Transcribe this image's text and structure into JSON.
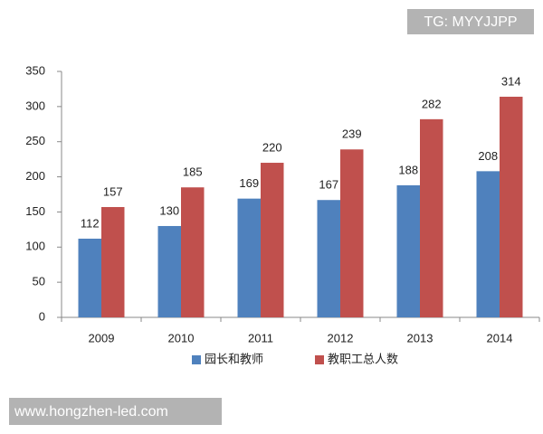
{
  "chart_data": {
    "type": "bar",
    "categories": [
      "2009",
      "2010",
      "2011",
      "2012",
      "2013",
      "2014"
    ],
    "series": [
      {
        "name": "园长和教师",
        "color": "#4f81bd",
        "values": [
          112,
          130,
          169,
          167,
          188,
          208
        ]
      },
      {
        "name": "教职工总人数",
        "color": "#c0504d",
        "values": [
          157,
          185,
          220,
          239,
          282,
          314
        ]
      }
    ],
    "ylim": [
      0,
      350
    ],
    "yticks": [
      0,
      50,
      100,
      150,
      200,
      250,
      300,
      350
    ],
    "grid": false,
    "legend": "bottom"
  },
  "watermarks": [
    "TG: MYYJJPP",
    "www.hongzhen-led.com"
  ]
}
